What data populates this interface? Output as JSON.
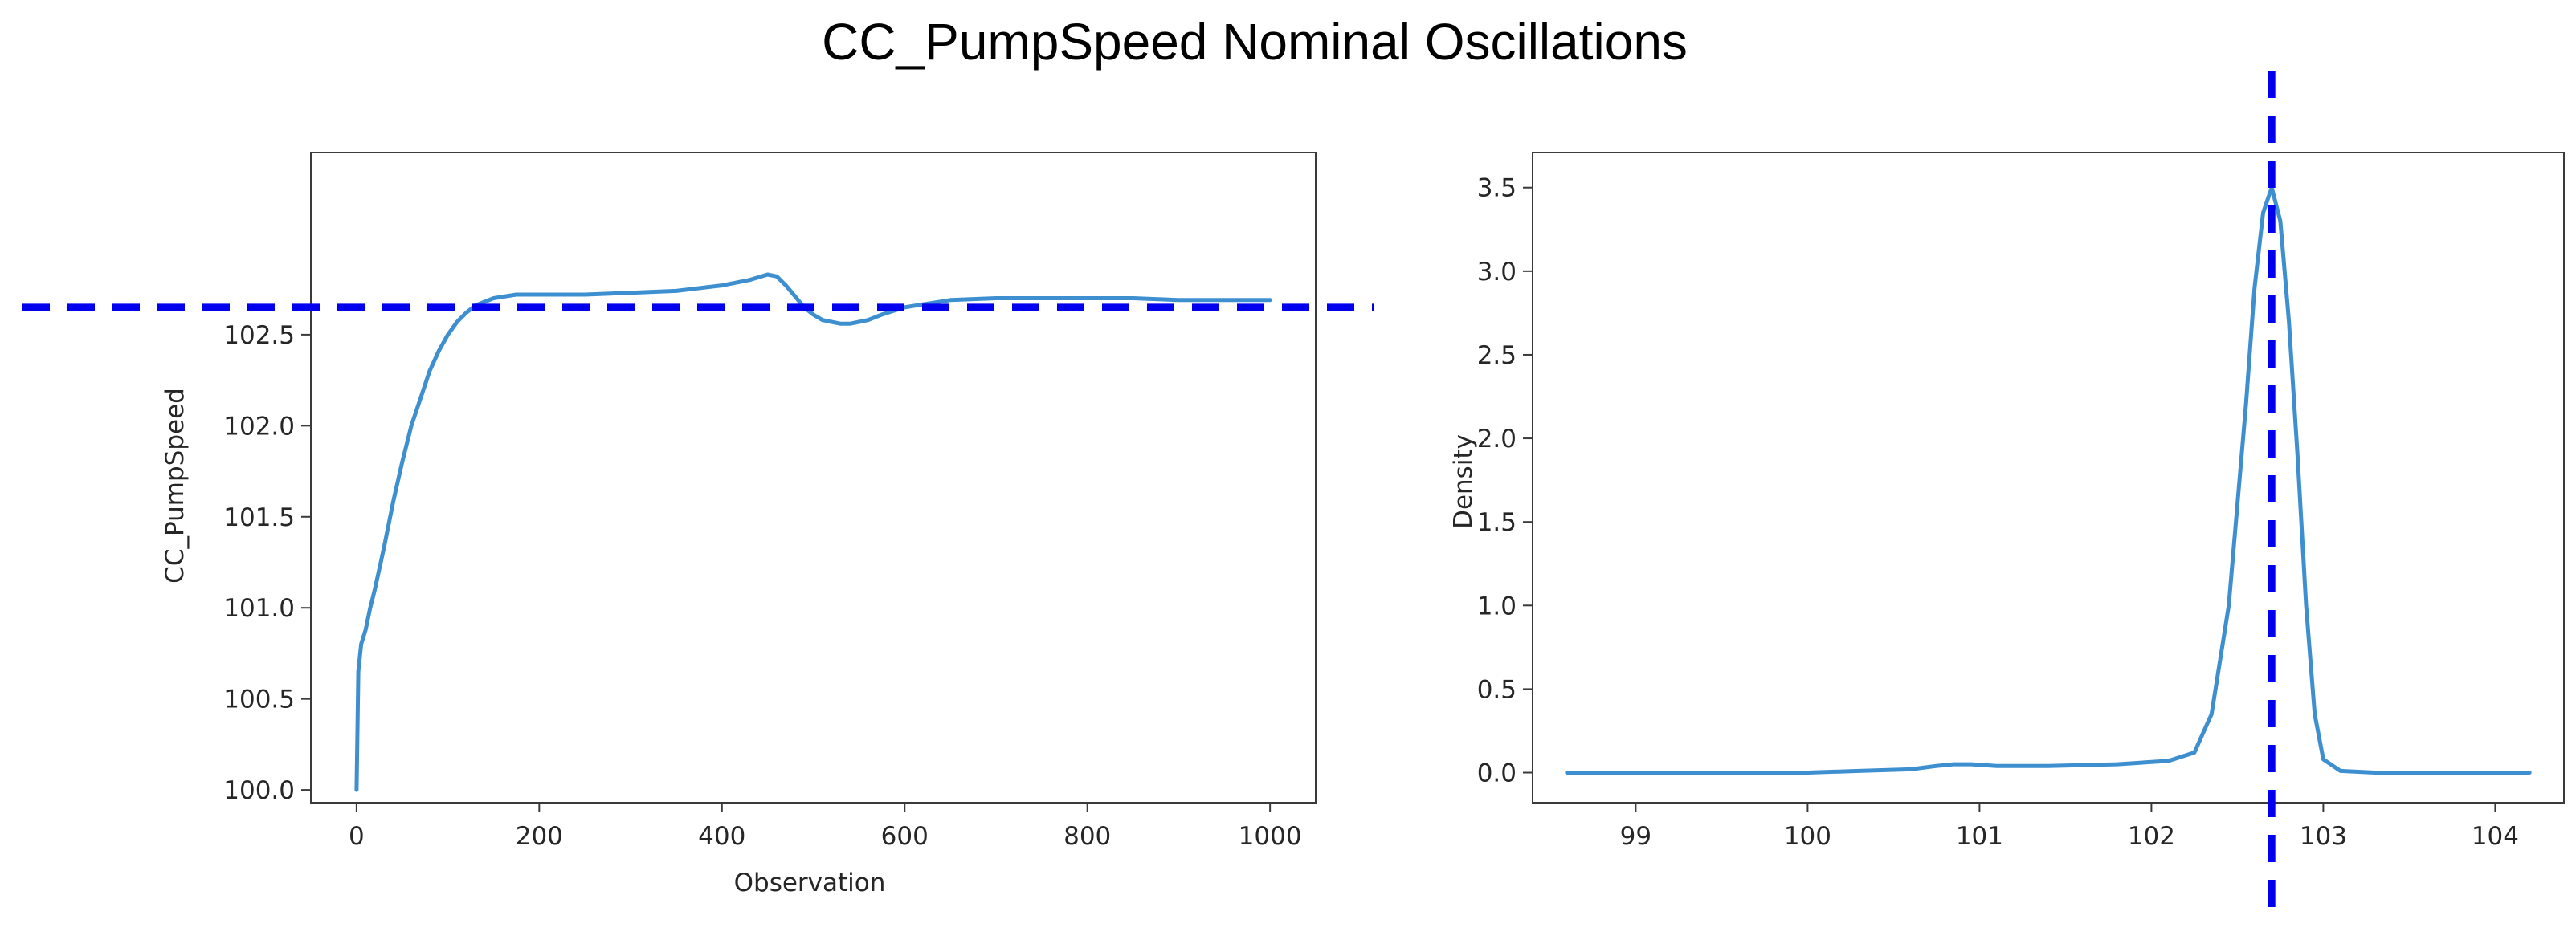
{
  "figure": {
    "title": "CC_PumpSpeed Nominal Oscillations"
  },
  "colors": {
    "series": "#3d8fd0",
    "reference_line": "#0000ee",
    "axes": "#3a3a3a",
    "text": "#262626"
  },
  "chart_data": [
    {
      "type": "line",
      "title": "",
      "xlabel": "Observation",
      "ylabel": "CC_PumpSpeed",
      "xlim": [
        -50,
        1050
      ],
      "ylim": [
        99.93,
        103.5
      ],
      "xticks": [
        0,
        200,
        400,
        600,
        800,
        1000
      ],
      "xtick_labels": [
        "0",
        "200",
        "400",
        "600",
        "800",
        "1000"
      ],
      "yticks": [
        100.0,
        100.5,
        101.0,
        101.5,
        102.0,
        102.5
      ],
      "ytick_labels": [
        "100.0",
        "100.5",
        "101.0",
        "101.5",
        "102.0",
        "102.5"
      ],
      "grid": false,
      "series": [
        {
          "name": "CC_PumpSpeed",
          "x": [
            0,
            2,
            5,
            10,
            15,
            20,
            30,
            40,
            50,
            60,
            70,
            80,
            90,
            100,
            110,
            120,
            130,
            150,
            175,
            200,
            250,
            300,
            350,
            400,
            430,
            450,
            460,
            470,
            480,
            490,
            500,
            510,
            520,
            530,
            540,
            550,
            560,
            575,
            600,
            625,
            650,
            700,
            750,
            800,
            850,
            900,
            950,
            1000
          ],
          "y": [
            100.0,
            100.65,
            100.8,
            100.88,
            101.0,
            101.1,
            101.33,
            101.58,
            101.8,
            102.0,
            102.15,
            102.3,
            102.41,
            102.5,
            102.57,
            102.62,
            102.66,
            102.7,
            102.72,
            102.72,
            102.72,
            102.73,
            102.74,
            102.77,
            102.8,
            102.83,
            102.82,
            102.77,
            102.71,
            102.65,
            102.61,
            102.58,
            102.57,
            102.56,
            102.56,
            102.57,
            102.58,
            102.61,
            102.65,
            102.67,
            102.69,
            102.7,
            102.7,
            102.7,
            102.7,
            102.69,
            102.69,
            102.69
          ]
        }
      ],
      "reference_line": {
        "orientation": "horizontal",
        "y": 102.65,
        "style": "dashed"
      }
    },
    {
      "type": "line",
      "title": "",
      "xlabel": "",
      "ylabel": "Density",
      "xlim": [
        98.4,
        104.4
      ],
      "ylim": [
        -0.18,
        3.71
      ],
      "xticks": [
        99,
        100,
        101,
        102,
        103,
        104
      ],
      "xtick_labels": [
        "99",
        "100",
        "101",
        "102",
        "103",
        "104"
      ],
      "yticks": [
        0.0,
        0.5,
        1.0,
        1.5,
        2.0,
        2.5,
        3.0,
        3.5
      ],
      "ytick_labels": [
        "0.0",
        "0.5",
        "1.0",
        "1.5",
        "2.0",
        "2.5",
        "3.0",
        "3.5"
      ],
      "grid": false,
      "series": [
        {
          "name": "Density",
          "x": [
            98.6,
            99.0,
            99.5,
            100.0,
            100.3,
            100.6,
            100.75,
            100.85,
            100.95,
            101.1,
            101.4,
            101.8,
            102.1,
            102.25,
            102.35,
            102.45,
            102.55,
            102.6,
            102.65,
            102.7,
            102.75,
            102.8,
            102.85,
            102.9,
            102.95,
            103.0,
            103.1,
            103.3,
            103.6,
            104.0,
            104.2
          ],
          "y": [
            0.0,
            0.0,
            0.0,
            0.0,
            0.01,
            0.02,
            0.04,
            0.05,
            0.05,
            0.04,
            0.04,
            0.05,
            0.07,
            0.12,
            0.35,
            1.0,
            2.2,
            2.9,
            3.35,
            3.5,
            3.3,
            2.7,
            1.9,
            1.0,
            0.35,
            0.08,
            0.01,
            0.0,
            0.0,
            0.0,
            0.0
          ]
        }
      ],
      "reference_line": {
        "orientation": "vertical",
        "x": 102.7,
        "style": "dashed"
      }
    }
  ]
}
